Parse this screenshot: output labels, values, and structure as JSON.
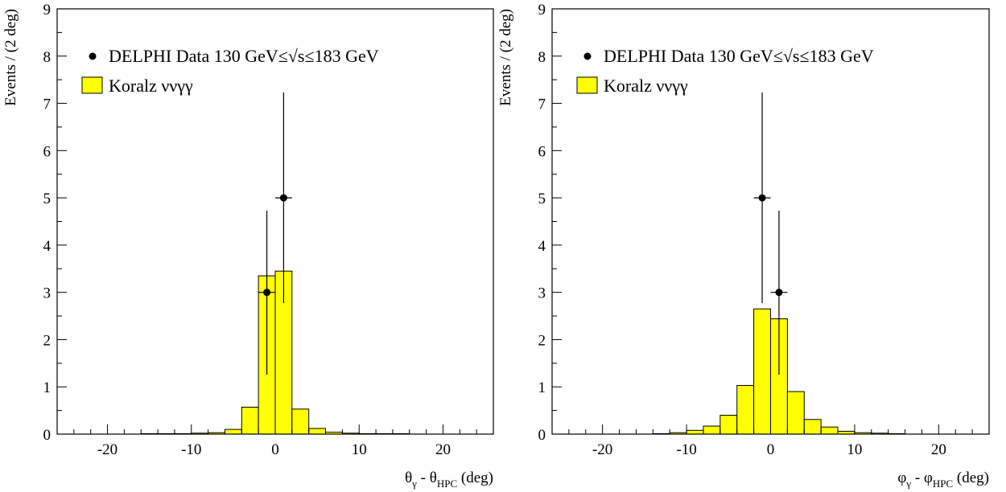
{
  "chart_data": [
    {
      "type": "bar",
      "bin_width": 2,
      "xlim": [
        -26,
        26
      ],
      "ylim": [
        0,
        9
      ],
      "x_ticks": [
        -20,
        -10,
        0,
        10,
        20
      ],
      "x_tick_labels": [
        "-20",
        "-10",
        "0",
        "10",
        "20"
      ],
      "y_ticks": [
        0,
        1,
        2,
        3,
        4,
        5,
        6,
        7,
        8,
        9
      ],
      "y_tick_labels": [
        "0",
        "1",
        "2",
        "3",
        "4",
        "5",
        "6",
        "7",
        "8",
        "9"
      ],
      "ylabel": "Events / (2 deg)",
      "xlabel": {
        "a": "θ",
        "a_sub": "γ",
        "sep": " - ",
        "b": "θ",
        "b_sub": "HPC",
        "unit": " (deg)"
      },
      "legend": {
        "data_label": "DELPHI Data 130 GeV≤√s≤183 GeV",
        "mc_label": "Koralz ννγγ",
        "placement": "top-left"
      },
      "colors": {
        "mc_fill": "#ffff00",
        "line": "#000000"
      },
      "series": [
        {
          "name": "Koralz ννγγ",
          "kind": "histogram",
          "bin_lows": [
            -26,
            -24,
            -22,
            -20,
            -18,
            -16,
            -14,
            -12,
            -10,
            -8,
            -6,
            -4,
            -2,
            0,
            2,
            4,
            6,
            8,
            10,
            12,
            14,
            16,
            18,
            20,
            22,
            24
          ],
          "values": [
            0,
            0,
            0,
            0,
            0,
            0.01,
            0.01,
            0.01,
            0.02,
            0.03,
            0.1,
            0.57,
            3.35,
            3.45,
            0.53,
            0.12,
            0.04,
            0.02,
            0.01,
            0.01,
            0.01,
            0,
            0,
            0,
            0,
            0
          ]
        },
        {
          "name": "DELPHI Data 130 GeV≤√s≤183 GeV",
          "kind": "points",
          "points": [
            {
              "x": -1,
              "y": 3,
              "yerr_low": 1.74,
              "yerr_high": 1.73,
              "xerr": 1
            },
            {
              "x": 1,
              "y": 5,
              "yerr_low": 2.23,
              "yerr_high": 2.23,
              "xerr": 1
            }
          ]
        }
      ]
    },
    {
      "type": "bar",
      "bin_width": 2,
      "xlim": [
        -26,
        26
      ],
      "ylim": [
        0,
        9
      ],
      "x_ticks": [
        -20,
        -10,
        0,
        10,
        20
      ],
      "x_tick_labels": [
        "-20",
        "-10",
        "0",
        "10",
        "20"
      ],
      "y_ticks": [
        0,
        1,
        2,
        3,
        4,
        5,
        6,
        7,
        8,
        9
      ],
      "y_tick_labels": [
        "0",
        "1",
        "2",
        "3",
        "4",
        "5",
        "6",
        "7",
        "8",
        "9"
      ],
      "ylabel": "Events / (2 deg)",
      "xlabel": {
        "a": "φ",
        "a_sub": "γ",
        "sep": " - ",
        "b": "φ",
        "b_sub": "HPC",
        "unit": " (deg)"
      },
      "legend": {
        "data_label": "DELPHI Data 130 GeV≤√s≤183 GeV",
        "mc_label": "Koralz ννγγ",
        "placement": "top-left"
      },
      "colors": {
        "mc_fill": "#ffff00",
        "line": "#000000"
      },
      "series": [
        {
          "name": "Koralz ννγγ",
          "kind": "histogram",
          "bin_lows": [
            -26,
            -24,
            -22,
            -20,
            -18,
            -16,
            -14,
            -12,
            -10,
            -8,
            -6,
            -4,
            -2,
            0,
            2,
            4,
            6,
            8,
            10,
            12,
            14,
            16,
            18,
            20,
            22,
            24
          ],
          "values": [
            0,
            0,
            0,
            0,
            0,
            0,
            0.01,
            0.03,
            0.08,
            0.17,
            0.4,
            1.03,
            2.65,
            2.44,
            0.9,
            0.31,
            0.15,
            0.06,
            0.03,
            0.02,
            0.01,
            0,
            0,
            0,
            0,
            0
          ]
        },
        {
          "name": "DELPHI Data 130 GeV≤√s≤183 GeV",
          "kind": "points",
          "points": [
            {
              "x": -1,
              "y": 5,
              "yerr_low": 2.23,
              "yerr_high": 2.23,
              "xerr": 1
            },
            {
              "x": 1,
              "y": 3,
              "yerr_low": 1.74,
              "yerr_high": 1.73,
              "xerr": 1
            }
          ]
        }
      ]
    }
  ]
}
